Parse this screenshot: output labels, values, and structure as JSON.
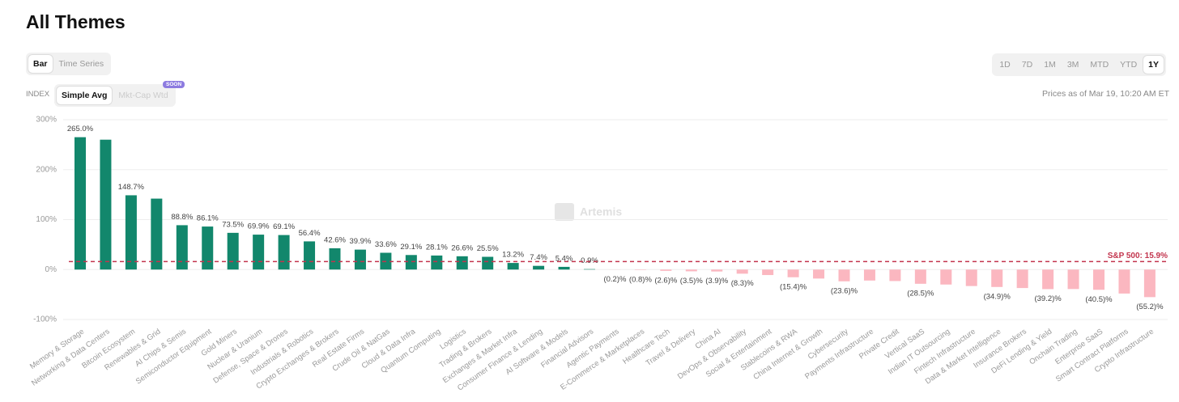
{
  "header": {
    "title": "All Themes",
    "view_toggle": [
      "Bar",
      "Time Series"
    ],
    "timeframes": [
      "1D",
      "7D",
      "1M",
      "3M",
      "MTD",
      "YTD",
      "1Y"
    ],
    "index_label": "INDEX",
    "index_options": [
      "Simple Avg",
      "Mkt-Cap Wtd"
    ],
    "badge": "SOON",
    "price_note": "Prices as of Mar 19, 10:20 AM ET"
  },
  "chart_data": {
    "type": "bar",
    "watermark": "Artemis",
    "categories": [
      "Memory & Storage",
      "Networking & Data Centers",
      "Bitcoin Ecosystem",
      "Renewables & Grid",
      "AI Chips & Semis",
      "Semiconductor Equipment",
      "Gold Miners",
      "Nuclear & Uranium",
      "Defense, Space & Drones",
      "Industrials & Robotics",
      "Crypto Exchanges & Brokers",
      "Real Estate Firms",
      "Crude Oil & NatGas",
      "Cloud & Data Infra",
      "Quantum Computing",
      "Logistics",
      "Trading & Brokers",
      "Exchanges & Market Infra",
      "Consumer Finance & Lending",
      "AI Software & Models",
      "Financial Advisors",
      "Agentic Payments",
      "E-Commerce & Marketplaces",
      "Healthcare Tech",
      "Travel & Delivery",
      "China AI",
      "DevOps & Observability",
      "Social & Entertainment",
      "Stablecoins & RWA",
      "China Internet & Growth",
      "Cybersecurity",
      "Payments Infrastructure",
      "Private Credit",
      "Vertical SaaS",
      "Indian IT Outsourcing",
      "Fintech Infrastructure",
      "Data & Market Intelligence",
      "Insurance Brokers",
      "DeFi Lending & Yield",
      "Onchain Trading",
      "Enterprise SaaS",
      "Smart Contract Platforms",
      "Crypto Infrastructure"
    ],
    "values": [
      265.0,
      260,
      148.7,
      142,
      88.8,
      86.1,
      73.5,
      69.9,
      69.1,
      56.4,
      42.6,
      39.9,
      33.6,
      29.1,
      28.1,
      26.6,
      25.5,
      13.2,
      7.4,
      5.4,
      0.9,
      -0.2,
      -0.8,
      -2.6,
      -3.5,
      -3.9,
      -8.3,
      -11,
      -15.4,
      -18,
      -23.6,
      -22,
      -23,
      -28.5,
      -30,
      -33,
      -34.9,
      -37,
      -39.2,
      -39,
      -40.5,
      -48,
      -55.2
    ],
    "value_labels": [
      "265.0%",
      null,
      "148.7%",
      null,
      "88.8%",
      "86.1%",
      "73.5%",
      "69.9%",
      "69.1%",
      "56.4%",
      "42.6%",
      "39.9%",
      "33.6%",
      "29.1%",
      "28.1%",
      "26.6%",
      "25.5%",
      "13.2%",
      "7.4%",
      "5.4%",
      "0.9%",
      "(0.2)%",
      "(0.8)%",
      "(2.6)%",
      "(3.5)%",
      "(3.9)%",
      "(8.3)%",
      null,
      "(15.4)%",
      null,
      "(23.6)%",
      null,
      null,
      "(28.5)%",
      null,
      null,
      "(34.9)%",
      null,
      "(39.2)%",
      null,
      "(40.5)%",
      null,
      "(55.2)%"
    ],
    "colors": {
      "positive": "#12876c",
      "negative": "#fbb7c0"
    },
    "ylim": [
      -100,
      300
    ],
    "yticks": [
      {
        "value": -100,
        "label": "-100%"
      },
      {
        "value": 0,
        "label": "0%"
      },
      {
        "value": 100,
        "label": "100%"
      },
      {
        "value": 200,
        "label": "200%"
      },
      {
        "value": 300,
        "label": "300%"
      }
    ],
    "grid": true,
    "reference_line": {
      "value": 15.9,
      "label": "S&P 500: 15.9%",
      "color": "#c2344d"
    }
  }
}
